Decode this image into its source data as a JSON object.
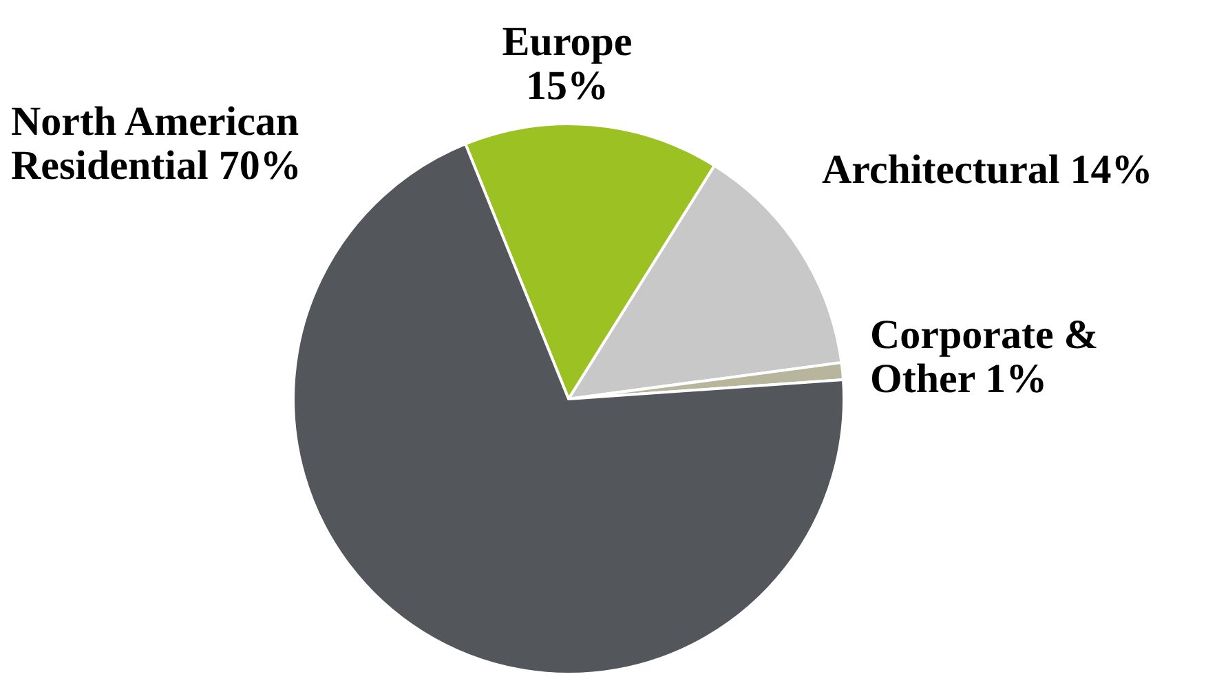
{
  "chart_data": {
    "type": "pie",
    "categories": [
      "Europe",
      "Architectural",
      "Corporate & Other",
      "North American Residential"
    ],
    "values": [
      15,
      14,
      1,
      70
    ],
    "value_labels": [
      "15%",
      "14%",
      "1%",
      "70%"
    ],
    "colors": [
      "#9bc123",
      "#c8c8c8",
      "#b7b59c",
      "#53565a"
    ]
  }
}
